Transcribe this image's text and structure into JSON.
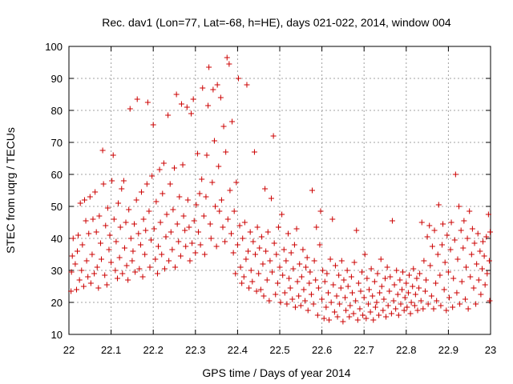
{
  "chart_data": {
    "type": "scatter",
    "title": "Rec. dav1 (Lon=77, Lat=-68, h=HE), days 021-022, 2014, window 004",
    "xlabel": "GPS time / Days of year 2014",
    "ylabel": "STEC from uqrg / TECUs",
    "xlim": [
      22.0,
      23.0
    ],
    "ylim": [
      10,
      100
    ],
    "x_ticks": [
      22,
      22.1,
      22.2,
      22.3,
      22.4,
      22.5,
      22.6,
      22.7,
      22.8,
      22.9,
      23
    ],
    "x_tick_labels": [
      "22",
      "22.1",
      "22.2",
      "22.3",
      "22.4",
      "22.5",
      "22.6",
      "22.7",
      "22.8",
      "22.9",
      "23"
    ],
    "y_ticks": [
      10,
      20,
      30,
      40,
      50,
      60,
      70,
      80,
      90,
      100
    ],
    "y_tick_labels": [
      "10",
      "20",
      "30",
      "40",
      "50",
      "60",
      "70",
      "80",
      "90",
      "100"
    ],
    "grid": true,
    "marker": "plus",
    "color": "#cc0000",
    "points": [
      [
        22.005,
        23.5
      ],
      [
        22.006,
        29.5
      ],
      [
        22.008,
        34.5
      ],
      [
        22.01,
        40.0
      ],
      [
        22.015,
        32.0
      ],
      [
        22.018,
        24.0
      ],
      [
        22.02,
        36.0
      ],
      [
        22.022,
        41.0
      ],
      [
        22.025,
        27.0
      ],
      [
        22.027,
        51.0
      ],
      [
        22.03,
        30.0
      ],
      [
        22.032,
        38.0
      ],
      [
        22.035,
        25.0
      ],
      [
        22.037,
        52.0
      ],
      [
        22.04,
        45.5
      ],
      [
        22.042,
        33.0
      ],
      [
        22.045,
        28.0
      ],
      [
        22.047,
        41.5
      ],
      [
        22.05,
        53.0
      ],
      [
        22.052,
        26.0
      ],
      [
        22.055,
        35.0
      ],
      [
        22.057,
        46.0
      ],
      [
        22.06,
        29.0
      ],
      [
        22.062,
        54.5
      ],
      [
        22.065,
        42.0
      ],
      [
        22.067,
        31.0
      ],
      [
        22.07,
        24.5
      ],
      [
        22.072,
        47.0
      ],
      [
        22.075,
        38.5
      ],
      [
        22.077,
        33.5
      ],
      [
        22.08,
        67.5
      ],
      [
        22.082,
        57.0
      ],
      [
        22.085,
        28.5
      ],
      [
        22.087,
        44.0
      ],
      [
        22.09,
        25.5
      ],
      [
        22.092,
        49.5
      ],
      [
        22.095,
        36.5
      ],
      [
        22.097,
        41.0
      ],
      [
        22.1,
        32.5
      ],
      [
        22.102,
        58.0
      ],
      [
        22.105,
        66.0
      ],
      [
        22.107,
        46.0
      ],
      [
        22.11,
        30.0
      ],
      [
        22.112,
        39.0
      ],
      [
        22.115,
        27.5
      ],
      [
        22.117,
        51.0
      ],
      [
        22.12,
        34.0
      ],
      [
        22.122,
        43.5
      ],
      [
        22.125,
        55.5
      ],
      [
        22.127,
        29.0
      ],
      [
        22.13,
        58.0
      ],
      [
        22.132,
        37.0
      ],
      [
        22.135,
        45.0
      ],
      [
        22.137,
        31.5
      ],
      [
        22.14,
        27.0
      ],
      [
        22.142,
        49.0
      ],
      [
        22.145,
        80.5
      ],
      [
        22.147,
        40.0
      ],
      [
        22.15,
        33.0
      ],
      [
        22.152,
        36.0
      ],
      [
        22.155,
        44.5
      ],
      [
        22.157,
        29.5
      ],
      [
        22.16,
        52.0
      ],
      [
        22.162,
        83.5
      ],
      [
        22.165,
        41.5
      ],
      [
        22.167,
        30.5
      ],
      [
        22.17,
        38.0
      ],
      [
        22.172,
        54.5
      ],
      [
        22.175,
        28.0
      ],
      [
        22.177,
        46.0
      ],
      [
        22.18,
        35.0
      ],
      [
        22.182,
        42.5
      ],
      [
        22.185,
        57.0
      ],
      [
        22.187,
        82.5
      ],
      [
        22.19,
        48.5
      ],
      [
        22.192,
        31.0
      ],
      [
        22.195,
        39.5
      ],
      [
        22.197,
        59.5
      ],
      [
        22.2,
        75.5
      ],
      [
        22.202,
        43.0
      ],
      [
        22.205,
        33.5
      ],
      [
        22.207,
        51.5
      ],
      [
        22.21,
        29.0
      ],
      [
        22.212,
        37.5
      ],
      [
        22.215,
        61.5
      ],
      [
        22.217,
        45.0
      ],
      [
        22.22,
        35.0
      ],
      [
        22.222,
        54.0
      ],
      [
        22.225,
        63.5
      ],
      [
        22.227,
        30.5
      ],
      [
        22.23,
        40.5
      ],
      [
        22.232,
        47.5
      ],
      [
        22.235,
        78.5
      ],
      [
        22.237,
        33.0
      ],
      [
        22.24,
        57.0
      ],
      [
        22.242,
        42.0
      ],
      [
        22.245,
        36.5
      ],
      [
        22.247,
        49.0
      ],
      [
        22.25,
        62.0
      ],
      [
        22.252,
        31.0
      ],
      [
        22.255,
        85.0
      ],
      [
        22.257,
        44.5
      ],
      [
        22.26,
        39.0
      ],
      [
        22.262,
        53.0
      ],
      [
        22.265,
        34.5
      ],
      [
        22.267,
        82.0
      ],
      [
        22.27,
        63.0
      ],
      [
        22.272,
        47.0
      ],
      [
        22.275,
        42.5
      ],
      [
        22.277,
        37.5
      ],
      [
        22.28,
        81.0
      ],
      [
        22.282,
        52.0
      ],
      [
        22.285,
        43.5
      ],
      [
        22.287,
        33.0
      ],
      [
        22.29,
        79.0
      ],
      [
        22.292,
        38.5
      ],
      [
        22.295,
        83.5
      ],
      [
        22.297,
        45.5
      ],
      [
        22.3,
        35.5
      ],
      [
        22.302,
        50.5
      ],
      [
        22.305,
        66.5
      ],
      [
        22.307,
        42.0
      ],
      [
        22.31,
        54.0
      ],
      [
        22.312,
        38.0
      ],
      [
        22.315,
        58.5
      ],
      [
        22.317,
        87.0
      ],
      [
        22.32,
        47.0
      ],
      [
        22.322,
        35.0
      ],
      [
        22.325,
        53.0
      ],
      [
        22.327,
        66.0
      ],
      [
        22.33,
        81.5
      ],
      [
        22.332,
        93.5
      ],
      [
        22.335,
        44.5
      ],
      [
        22.337,
        40.0
      ],
      [
        22.34,
        57.5
      ],
      [
        22.342,
        86.5
      ],
      [
        22.345,
        70.5
      ],
      [
        22.347,
        50.0
      ],
      [
        22.35,
        37.5
      ],
      [
        22.352,
        88.0
      ],
      [
        22.355,
        62.5
      ],
      [
        22.357,
        48.5
      ],
      [
        22.36,
        84.0
      ],
      [
        22.362,
        52.0
      ],
      [
        22.365,
        43.5
      ],
      [
        22.367,
        75.0
      ],
      [
        22.37,
        39.0
      ],
      [
        22.372,
        67.0
      ],
      [
        22.375,
        96.5
      ],
      [
        22.377,
        46.0
      ],
      [
        22.38,
        94.5
      ],
      [
        22.382,
        55.0
      ],
      [
        22.385,
        41.5
      ],
      [
        22.387,
        76.5
      ],
      [
        22.39,
        35.5
      ],
      [
        22.392,
        48.5
      ],
      [
        22.395,
        29.0
      ],
      [
        22.397,
        57.5
      ],
      [
        22.4,
        38.0
      ],
      [
        22.402,
        90.0
      ],
      [
        22.405,
        44.0
      ],
      [
        22.407,
        31.0
      ],
      [
        22.41,
        26.0
      ],
      [
        22.412,
        40.0
      ],
      [
        22.415,
        28.0
      ],
      [
        22.417,
        45.0
      ],
      [
        22.42,
        33.5
      ],
      [
        22.422,
        88.0
      ],
      [
        22.425,
        36.0
      ],
      [
        22.427,
        24.5
      ],
      [
        22.43,
        42.0
      ],
      [
        22.432,
        30.0
      ],
      [
        22.435,
        26.5
      ],
      [
        22.437,
        39.0
      ],
      [
        22.44,
        67.0
      ],
      [
        22.442,
        35.0
      ],
      [
        22.445,
        23.5
      ],
      [
        22.447,
        43.5
      ],
      [
        22.45,
        29.0
      ],
      [
        22.452,
        37.0
      ],
      [
        22.455,
        24.0
      ],
      [
        22.457,
        40.5
      ],
      [
        22.46,
        32.0
      ],
      [
        22.462,
        22.0
      ],
      [
        22.465,
        55.5
      ],
      [
        22.467,
        36.0
      ],
      [
        22.47,
        27.0
      ],
      [
        22.472,
        42.0
      ],
      [
        22.475,
        20.5
      ],
      [
        22.477,
        33.0
      ],
      [
        22.48,
        52.5
      ],
      [
        22.482,
        29.5
      ],
      [
        22.485,
        72.0
      ],
      [
        22.487,
        38.5
      ],
      [
        22.49,
        22.5
      ],
      [
        22.492,
        35.0
      ],
      [
        22.495,
        26.0
      ],
      [
        22.497,
        43.5
      ],
      [
        22.5,
        31.0
      ],
      [
        22.502,
        20.0
      ],
      [
        22.505,
        47.5
      ],
      [
        22.507,
        28.5
      ],
      [
        22.51,
        36.5
      ],
      [
        22.512,
        23.0
      ],
      [
        22.515,
        33.0
      ],
      [
        22.517,
        19.5
      ],
      [
        22.52,
        41.5
      ],
      [
        22.522,
        27.5
      ],
      [
        22.525,
        24.5
      ],
      [
        22.527,
        35.5
      ],
      [
        22.53,
        21.0
      ],
      [
        22.532,
        30.5
      ],
      [
        22.535,
        38.0
      ],
      [
        22.537,
        18.5
      ],
      [
        22.54,
        43.0
      ],
      [
        22.542,
        26.5
      ],
      [
        22.545,
        22.0
      ],
      [
        22.547,
        32.0
      ],
      [
        22.55,
        19.0
      ],
      [
        22.552,
        28.0
      ],
      [
        22.555,
        36.5
      ],
      [
        22.557,
        24.0
      ],
      [
        22.56,
        20.5
      ],
      [
        22.562,
        31.0
      ],
      [
        22.565,
        34.0
      ],
      [
        22.567,
        17.5
      ],
      [
        22.57,
        26.0
      ],
      [
        22.572,
        29.5
      ],
      [
        22.575,
        22.5
      ],
      [
        22.577,
        55.0
      ],
      [
        22.58,
        19.5
      ],
      [
        22.582,
        33.0
      ],
      [
        22.585,
        27.0
      ],
      [
        22.587,
        43.5
      ],
      [
        22.59,
        16.0
      ],
      [
        22.592,
        24.5
      ],
      [
        22.595,
        38.0
      ],
      [
        22.597,
        48.5
      ],
      [
        22.6,
        21.0
      ],
      [
        22.602,
        30.0
      ],
      [
        22.605,
        15.0
      ],
      [
        22.607,
        26.5
      ],
      [
        22.61,
        18.5
      ],
      [
        22.612,
        29.0
      ],
      [
        22.615,
        23.0
      ],
      [
        22.617,
        14.5
      ],
      [
        22.62,
        33.5
      ],
      [
        22.622,
        20.0
      ],
      [
        22.625,
        46.0
      ],
      [
        22.627,
        25.5
      ],
      [
        22.63,
        17.0
      ],
      [
        22.632,
        31.5
      ],
      [
        22.635,
        22.0
      ],
      [
        22.637,
        15.5
      ],
      [
        22.64,
        28.5
      ],
      [
        22.642,
        19.5
      ],
      [
        22.645,
        24.5
      ],
      [
        22.647,
        33.0
      ],
      [
        22.65,
        14.0
      ],
      [
        22.652,
        27.0
      ],
      [
        22.655,
        21.5
      ],
      [
        22.657,
        17.5
      ],
      [
        22.66,
        30.0
      ],
      [
        22.662,
        25.0
      ],
      [
        22.665,
        15.5
      ],
      [
        22.667,
        19.0
      ],
      [
        22.67,
        28.0
      ],
      [
        22.672,
        23.0
      ],
      [
        22.675,
        16.5
      ],
      [
        22.677,
        32.5
      ],
      [
        22.68,
        20.5
      ],
      [
        22.682,
        42.5
      ],
      [
        22.685,
        14.5
      ],
      [
        22.687,
        26.0
      ],
      [
        22.69,
        18.0
      ],
      [
        22.692,
        23.5
      ],
      [
        22.695,
        29.5
      ],
      [
        22.697,
        16.0
      ],
      [
        22.7,
        21.5
      ],
      [
        22.702,
        35.0
      ],
      [
        22.705,
        15.0
      ],
      [
        22.707,
        27.5
      ],
      [
        22.71,
        19.5
      ],
      [
        22.712,
        24.0
      ],
      [
        22.715,
        17.0
      ],
      [
        22.717,
        30.5
      ],
      [
        22.72,
        22.0
      ],
      [
        22.722,
        14.5
      ],
      [
        22.725,
        26.5
      ],
      [
        22.727,
        18.5
      ],
      [
        22.73,
        20.0
      ],
      [
        22.732,
        29.0
      ],
      [
        22.735,
        16.0
      ],
      [
        22.737,
        23.0
      ],
      [
        22.74,
        33.5
      ],
      [
        22.742,
        25.0
      ],
      [
        22.745,
        17.5
      ],
      [
        22.747,
        21.0
      ],
      [
        22.75,
        27.5
      ],
      [
        22.752,
        15.5
      ],
      [
        22.755,
        31.0
      ],
      [
        22.757,
        19.0
      ],
      [
        22.76,
        23.5
      ],
      [
        22.762,
        28.0
      ],
      [
        22.765,
        16.5
      ],
      [
        22.767,
        45.5
      ],
      [
        22.77,
        20.5
      ],
      [
        22.772,
        25.5
      ],
      [
        22.775,
        18.0
      ],
      [
        22.777,
        30.0
      ],
      [
        22.78,
        22.5
      ],
      [
        22.782,
        16.0
      ],
      [
        22.785,
        27.0
      ],
      [
        22.787,
        19.5
      ],
      [
        22.79,
        24.0
      ],
      [
        22.792,
        29.5
      ],
      [
        22.795,
        17.5
      ],
      [
        22.797,
        21.5
      ],
      [
        22.8,
        26.0
      ],
      [
        22.802,
        18.5
      ],
      [
        22.805,
        23.0
      ],
      [
        22.807,
        28.5
      ],
      [
        22.81,
        16.5
      ],
      [
        22.812,
        20.0
      ],
      [
        22.815,
        25.0
      ],
      [
        22.817,
        30.5
      ],
      [
        22.82,
        19.0
      ],
      [
        22.822,
        22.5
      ],
      [
        22.825,
        27.5
      ],
      [
        22.827,
        17.5
      ],
      [
        22.83,
        24.5
      ],
      [
        22.832,
        29.0
      ],
      [
        22.835,
        20.5
      ],
      [
        22.837,
        45.0
      ],
      [
        22.84,
        18.0
      ],
      [
        22.842,
        33.0
      ],
      [
        22.845,
        23.5
      ],
      [
        22.847,
        27.0
      ],
      [
        22.85,
        40.5
      ],
      [
        22.852,
        19.5
      ],
      [
        22.855,
        44.0
      ],
      [
        22.857,
        31.5
      ],
      [
        22.86,
        22.0
      ],
      [
        22.862,
        37.5
      ],
      [
        22.865,
        18.0
      ],
      [
        22.867,
        42.5
      ],
      [
        22.87,
        26.0
      ],
      [
        22.872,
        20.5
      ],
      [
        22.875,
        35.0
      ],
      [
        22.877,
        50.5
      ],
      [
        22.88,
        28.5
      ],
      [
        22.882,
        19.0
      ],
      [
        22.885,
        38.0
      ],
      [
        22.887,
        44.5
      ],
      [
        22.89,
        24.0
      ],
      [
        22.892,
        32.5
      ],
      [
        22.895,
        17.5
      ],
      [
        22.897,
        41.0
      ],
      [
        22.9,
        29.5
      ],
      [
        22.902,
        21.5
      ],
      [
        22.905,
        36.5
      ],
      [
        22.907,
        45.0
      ],
      [
        22.91,
        18.5
      ],
      [
        22.912,
        27.5
      ],
      [
        22.915,
        39.5
      ],
      [
        22.917,
        60.0
      ],
      [
        22.92,
        23.0
      ],
      [
        22.922,
        33.5
      ],
      [
        22.925,
        50.0
      ],
      [
        22.927,
        19.5
      ],
      [
        22.93,
        42.5
      ],
      [
        22.932,
        26.5
      ],
      [
        22.935,
        37.0
      ],
      [
        22.937,
        45.5
      ],
      [
        22.94,
        21.0
      ],
      [
        22.942,
        31.0
      ],
      [
        22.945,
        40.0
      ],
      [
        22.947,
        18.0
      ],
      [
        22.95,
        48.5
      ],
      [
        22.952,
        28.0
      ],
      [
        22.955,
        35.0
      ],
      [
        22.957,
        43.0
      ],
      [
        22.96,
        24.5
      ],
      [
        22.962,
        38.5
      ],
      [
        22.965,
        19.5
      ],
      [
        22.967,
        32.0
      ],
      [
        22.97,
        41.5
      ],
      [
        22.972,
        27.0
      ],
      [
        22.975,
        36.0
      ],
      [
        22.977,
        22.5
      ],
      [
        22.98,
        30.5
      ],
      [
        22.982,
        39.0
      ],
      [
        22.985,
        34.5
      ],
      [
        22.987,
        25.5
      ],
      [
        22.99,
        40.5
      ],
      [
        22.992,
        29.0
      ],
      [
        22.995,
        47.5
      ],
      [
        22.997,
        33.0
      ],
      [
        22.998,
        20.5
      ],
      [
        22.999,
        42.0
      ]
    ]
  }
}
